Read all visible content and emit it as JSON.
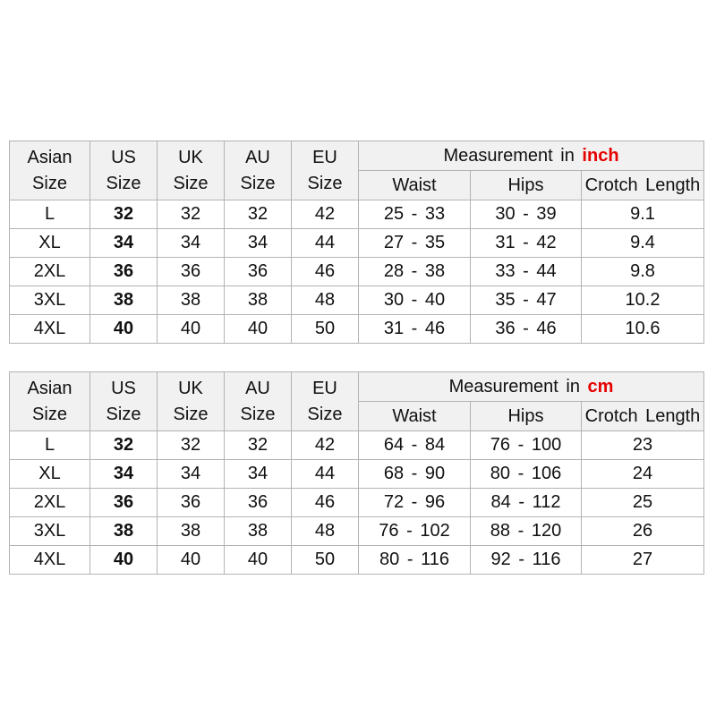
{
  "colors": {
    "accent_red": "#e60000",
    "header_bg": "#f1f1f1",
    "border": "#b3b3b3",
    "text": "#111111"
  },
  "chart_data": [
    {
      "type": "table",
      "title": "Measurement in inch",
      "measurement_header": {
        "prefix": "Measurement in",
        "unit": "inch"
      },
      "size_columns": [
        {
          "line1": "Asian",
          "line2": "Size"
        },
        {
          "line1": "US",
          "line2": "Size"
        },
        {
          "line1": "UK",
          "line2": "Size"
        },
        {
          "line1": "AU",
          "line2": "Size"
        },
        {
          "line1": "EU",
          "line2": "Size"
        }
      ],
      "measure_columns": [
        "Waist",
        "Hips",
        "Crotch Length"
      ],
      "column_order": [
        "asian",
        "us",
        "uk",
        "au",
        "eu",
        "waist",
        "hips",
        "crotch"
      ],
      "rows": [
        {
          "asian": "L",
          "us": "32",
          "uk": "32",
          "au": "32",
          "eu": "42",
          "waist": "25 - 33",
          "hips": "30 - 39",
          "crotch": "9.1"
        },
        {
          "asian": "XL",
          "us": "34",
          "uk": "34",
          "au": "34",
          "eu": "44",
          "waist": "27 - 35",
          "hips": "31 - 42",
          "crotch": "9.4"
        },
        {
          "asian": "2XL",
          "us": "36",
          "uk": "36",
          "au": "36",
          "eu": "46",
          "waist": "28 - 38",
          "hips": "33 - 44",
          "crotch": "9.8"
        },
        {
          "asian": "3XL",
          "us": "38",
          "uk": "38",
          "au": "38",
          "eu": "48",
          "waist": "30 - 40",
          "hips": "35 - 47",
          "crotch": "10.2"
        },
        {
          "asian": "4XL",
          "us": "40",
          "uk": "40",
          "au": "40",
          "eu": "50",
          "waist": "31 - 46",
          "hips": "36 - 46",
          "crotch": "10.6"
        }
      ]
    },
    {
      "type": "table",
      "title": "Measurement in cm",
      "measurement_header": {
        "prefix": "Measurement in",
        "unit": "cm"
      },
      "size_columns": [
        {
          "line1": "Asian",
          "line2": "Size"
        },
        {
          "line1": "US",
          "line2": "Size"
        },
        {
          "line1": "UK",
          "line2": "Size"
        },
        {
          "line1": "AU",
          "line2": "Size"
        },
        {
          "line1": "EU",
          "line2": "Size"
        }
      ],
      "measure_columns": [
        "Waist",
        "Hips",
        "Crotch Length"
      ],
      "column_order": [
        "asian",
        "us",
        "uk",
        "au",
        "eu",
        "waist",
        "hips",
        "crotch"
      ],
      "rows": [
        {
          "asian": "L",
          "us": "32",
          "uk": "32",
          "au": "32",
          "eu": "42",
          "waist": "64 - 84",
          "hips": "76 - 100",
          "crotch": "23"
        },
        {
          "asian": "XL",
          "us": "34",
          "uk": "34",
          "au": "34",
          "eu": "44",
          "waist": "68 - 90",
          "hips": "80 - 106",
          "crotch": "24"
        },
        {
          "asian": "2XL",
          "us": "36",
          "uk": "36",
          "au": "36",
          "eu": "46",
          "waist": "72 - 96",
          "hips": "84 - 112",
          "crotch": "25"
        },
        {
          "asian": "3XL",
          "us": "38",
          "uk": "38",
          "au": "38",
          "eu": "48",
          "waist": "76 - 102",
          "hips": "88 - 120",
          "crotch": "26"
        },
        {
          "asian": "4XL",
          "us": "40",
          "uk": "40",
          "au": "40",
          "eu": "50",
          "waist": "80 - 116",
          "hips": "92 - 116",
          "crotch": "27"
        }
      ]
    }
  ]
}
